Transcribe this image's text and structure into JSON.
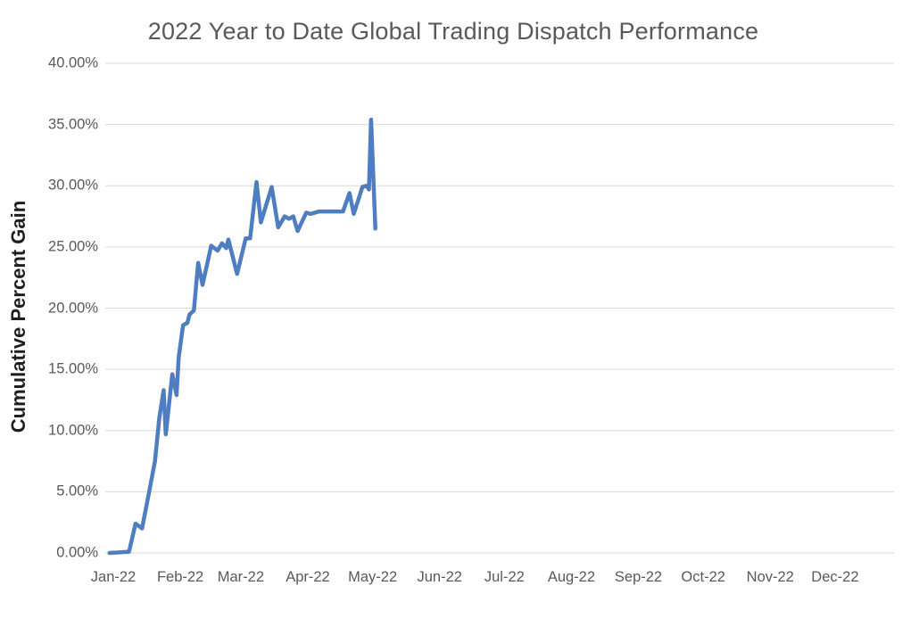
{
  "chart_data": {
    "type": "line",
    "title": "2022 Year to Date Global Trading Dispatch Performance",
    "ylabel": "Cumulative Percent Gain",
    "xlabel": "",
    "y_ticks": [
      "40.00%",
      "35.00%",
      "30.00%",
      "25.00%",
      "20.00%",
      "15.00%",
      "10.00%",
      "5.00%",
      "0.00%"
    ],
    "x_ticks": [
      "Jan-22",
      "Feb-22",
      "Mar-22",
      "Apr-22",
      "May-22",
      "Jun-22",
      "Jul-22",
      "Aug-22",
      "Sep-22",
      "Oct-22",
      "Nov-22",
      "Dec-22"
    ],
    "ylim": [
      0,
      40
    ],
    "x_range": [
      "2022-01-01",
      "2023-01-01"
    ],
    "grid": true,
    "legend": "none",
    "colors": {
      "line": "#4e7dc1",
      "gridline": "#d9d9d9",
      "title": "#595959",
      "tick_labels": "#595959",
      "axis_title": "#1f1f1f",
      "background": "#ffffff"
    },
    "series": [
      {
        "name": "Cumulative Percent Gain",
        "unit": "%",
        "points": [
          [
            "2022-01-03",
            0.0
          ],
          [
            "2022-01-12",
            0.1
          ],
          [
            "2022-01-15",
            2.4
          ],
          [
            "2022-01-18",
            2.0
          ],
          [
            "2022-01-21",
            4.7
          ],
          [
            "2022-01-24",
            7.5
          ],
          [
            "2022-01-26",
            11.0
          ],
          [
            "2022-01-28",
            13.3
          ],
          [
            "2022-01-29",
            9.7
          ],
          [
            "2022-02-01",
            14.6
          ],
          [
            "2022-02-03",
            12.9
          ],
          [
            "2022-02-04",
            16.0
          ],
          [
            "2022-02-06",
            18.6
          ],
          [
            "2022-02-08",
            18.8
          ],
          [
            "2022-02-09",
            19.5
          ],
          [
            "2022-02-11",
            19.8
          ],
          [
            "2022-02-13",
            23.7
          ],
          [
            "2022-02-15",
            21.9
          ],
          [
            "2022-02-19",
            25.1
          ],
          [
            "2022-02-22",
            24.7
          ],
          [
            "2022-02-24",
            25.3
          ],
          [
            "2022-02-26",
            24.9
          ],
          [
            "2022-02-27",
            25.6
          ],
          [
            "2022-03-03",
            22.8
          ],
          [
            "2022-03-07",
            25.7
          ],
          [
            "2022-03-09",
            25.7
          ],
          [
            "2022-03-12",
            30.3
          ],
          [
            "2022-03-14",
            27.0
          ],
          [
            "2022-03-19",
            29.9
          ],
          [
            "2022-03-22",
            26.6
          ],
          [
            "2022-03-25",
            27.5
          ],
          [
            "2022-03-27",
            27.3
          ],
          [
            "2022-03-29",
            27.5
          ],
          [
            "2022-03-31",
            26.3
          ],
          [
            "2022-04-04",
            27.8
          ],
          [
            "2022-04-06",
            27.7
          ],
          [
            "2022-04-10",
            27.9
          ],
          [
            "2022-04-21",
            27.9
          ],
          [
            "2022-04-24",
            29.4
          ],
          [
            "2022-04-26",
            27.7
          ],
          [
            "2022-04-30",
            29.9
          ],
          [
            "2022-05-02",
            30.0
          ],
          [
            "2022-05-03",
            29.7
          ],
          [
            "2022-05-04",
            35.4
          ],
          [
            "2022-05-06",
            26.5
          ]
        ]
      }
    ]
  }
}
